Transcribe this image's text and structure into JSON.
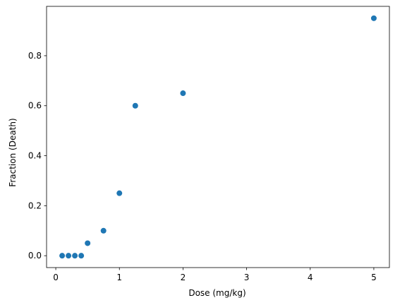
{
  "chart_data": {
    "type": "scatter",
    "title": "",
    "xlabel": "Dose (mg/kg)",
    "ylabel": "Fraction (Death)",
    "x": [
      0.1,
      0.2,
      0.3,
      0.4,
      0.5,
      0.75,
      1.0,
      1.25,
      2.0,
      5.0
    ],
    "y": [
      0.0,
      0.0,
      0.0,
      0.0,
      0.05,
      0.1,
      0.25,
      0.6,
      0.65,
      0.95
    ],
    "xlim": [
      -0.145,
      5.245
    ],
    "ylim": [
      -0.0475,
      0.9975
    ],
    "xticks": [
      0,
      1,
      2,
      3,
      4,
      5
    ],
    "xtick_labels": [
      "0",
      "1",
      "2",
      "3",
      "4",
      "5"
    ],
    "yticks": [
      0.0,
      0.2,
      0.4,
      0.6,
      0.8
    ],
    "ytick_labels": [
      "0.0",
      "0.2",
      "0.4",
      "0.6",
      "0.8"
    ],
    "grid": false,
    "legend": "none",
    "marker_color": "#1f77b4"
  }
}
